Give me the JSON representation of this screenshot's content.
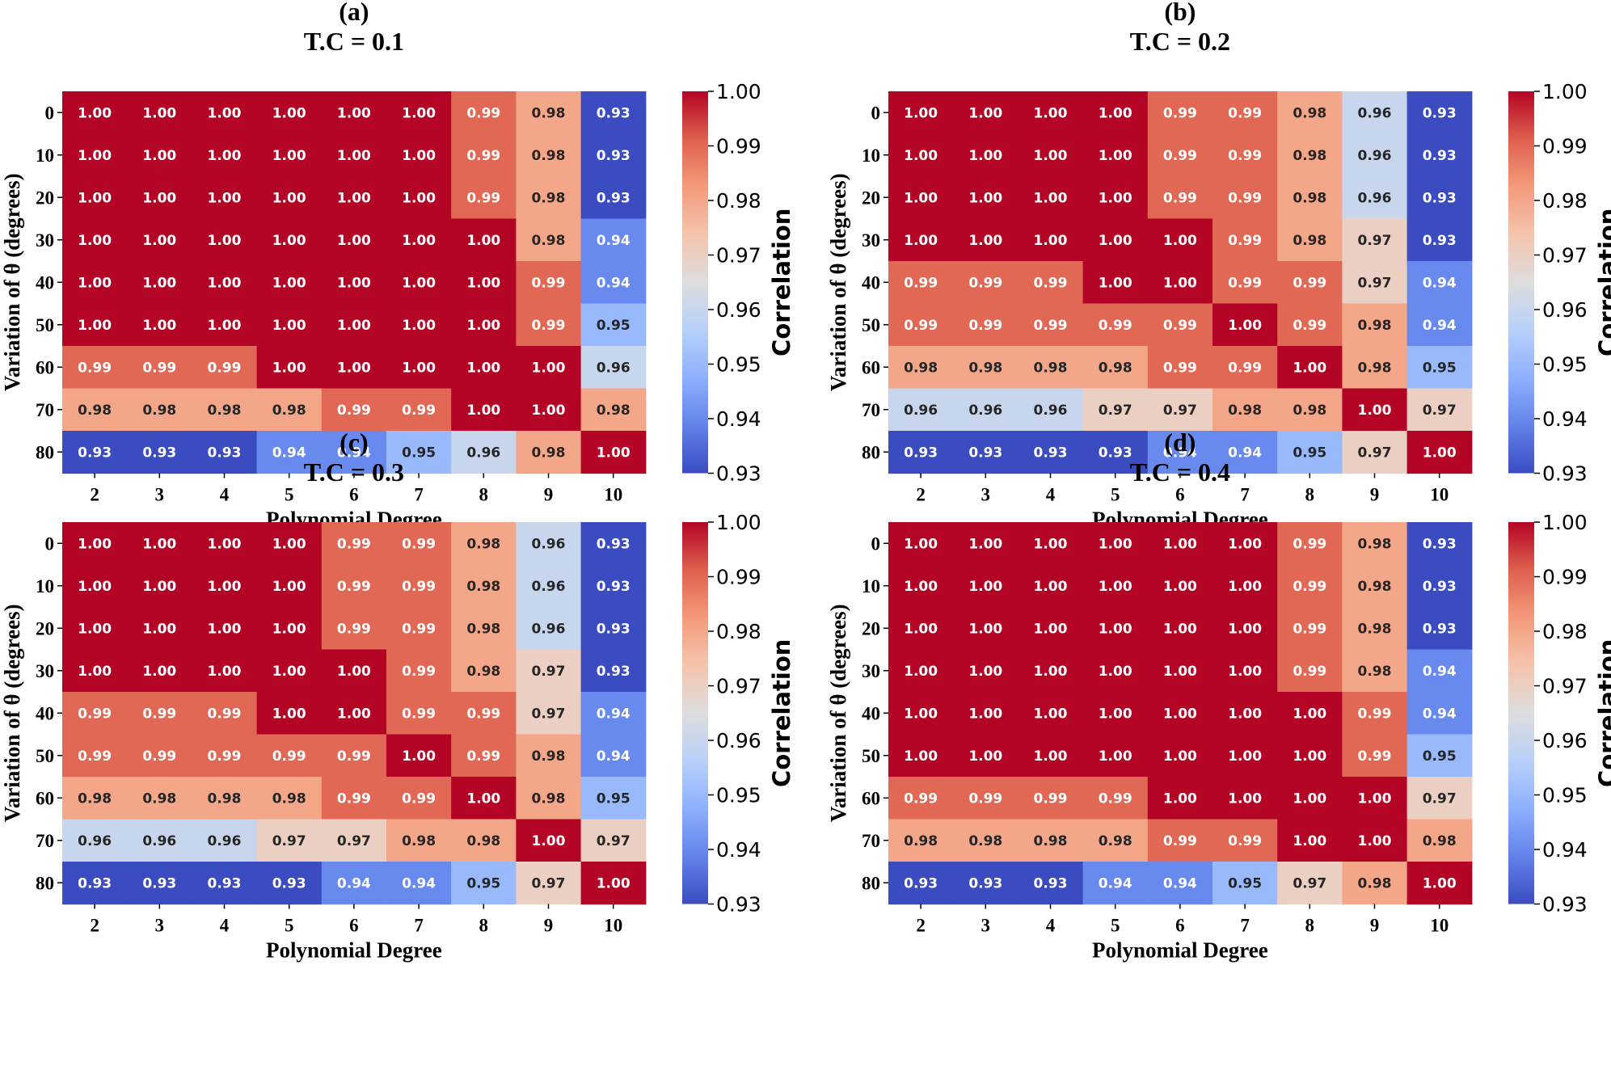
{
  "chart_data": [
    {
      "type": "heatmap",
      "panel_label": "(a)",
      "title": "T.C = 0.1",
      "xlabel": "Polynomial Degree",
      "ylabel": "Variation of  θ (degrees)",
      "x_categories": [
        "2",
        "3",
        "4",
        "5",
        "6",
        "7",
        "8",
        "9",
        "10"
      ],
      "y_categories": [
        "0",
        "10",
        "20",
        "30",
        "40",
        "50",
        "60",
        "70",
        "80"
      ],
      "values": [
        [
          1.0,
          1.0,
          1.0,
          1.0,
          1.0,
          1.0,
          0.99,
          0.98,
          0.93
        ],
        [
          1.0,
          1.0,
          1.0,
          1.0,
          1.0,
          1.0,
          0.99,
          0.98,
          0.93
        ],
        [
          1.0,
          1.0,
          1.0,
          1.0,
          1.0,
          1.0,
          0.99,
          0.98,
          0.93
        ],
        [
          1.0,
          1.0,
          1.0,
          1.0,
          1.0,
          1.0,
          1.0,
          0.98,
          0.94
        ],
        [
          1.0,
          1.0,
          1.0,
          1.0,
          1.0,
          1.0,
          1.0,
          0.99,
          0.94
        ],
        [
          1.0,
          1.0,
          1.0,
          1.0,
          1.0,
          1.0,
          1.0,
          0.99,
          0.95
        ],
        [
          0.99,
          0.99,
          0.99,
          1.0,
          1.0,
          1.0,
          1.0,
          1.0,
          0.96
        ],
        [
          0.98,
          0.98,
          0.98,
          0.98,
          0.99,
          0.99,
          1.0,
          1.0,
          0.98
        ],
        [
          0.93,
          0.93,
          0.93,
          0.94,
          0.94,
          0.95,
          0.96,
          0.98,
          1.0
        ]
      ],
      "colorbar": {
        "label": "Correlation",
        "range": [
          0.93,
          1.0
        ],
        "ticks": [
          "1.00",
          "0.99",
          "0.98",
          "0.97",
          "0.96",
          "0.95",
          "0.94",
          "0.93"
        ],
        "colormap": "coolwarm"
      }
    },
    {
      "type": "heatmap",
      "panel_label": "(b)",
      "title": "T.C = 0.2",
      "xlabel": "Polynomial Degree",
      "ylabel": "Variation of  θ (degrees)",
      "x_categories": [
        "2",
        "3",
        "4",
        "5",
        "6",
        "7",
        "8",
        "9",
        "10"
      ],
      "y_categories": [
        "0",
        "10",
        "20",
        "30",
        "40",
        "50",
        "60",
        "70",
        "80"
      ],
      "values": [
        [
          1.0,
          1.0,
          1.0,
          1.0,
          0.99,
          0.99,
          0.98,
          0.96,
          0.93
        ],
        [
          1.0,
          1.0,
          1.0,
          1.0,
          0.99,
          0.99,
          0.98,
          0.96,
          0.93
        ],
        [
          1.0,
          1.0,
          1.0,
          1.0,
          0.99,
          0.99,
          0.98,
          0.96,
          0.93
        ],
        [
          1.0,
          1.0,
          1.0,
          1.0,
          1.0,
          0.99,
          0.98,
          0.97,
          0.93
        ],
        [
          0.99,
          0.99,
          0.99,
          1.0,
          1.0,
          0.99,
          0.99,
          0.97,
          0.94
        ],
        [
          0.99,
          0.99,
          0.99,
          0.99,
          0.99,
          1.0,
          0.99,
          0.98,
          0.94
        ],
        [
          0.98,
          0.98,
          0.98,
          0.98,
          0.99,
          0.99,
          1.0,
          0.98,
          0.95
        ],
        [
          0.96,
          0.96,
          0.96,
          0.97,
          0.97,
          0.98,
          0.98,
          1.0,
          0.97
        ],
        [
          0.93,
          0.93,
          0.93,
          0.93,
          0.94,
          0.94,
          0.95,
          0.97,
          1.0
        ]
      ],
      "colorbar": {
        "label": "Correlation",
        "range": [
          0.93,
          1.0
        ],
        "ticks": [
          "1.00",
          "0.99",
          "0.98",
          "0.97",
          "0.96",
          "0.95",
          "0.94",
          "0.93"
        ],
        "colormap": "coolwarm"
      }
    },
    {
      "type": "heatmap",
      "panel_label": "(c)",
      "title": "T.C = 0.3",
      "xlabel": "Polynomial Degree",
      "ylabel": "Variation of  θ (degrees)",
      "x_categories": [
        "2",
        "3",
        "4",
        "5",
        "6",
        "7",
        "8",
        "9",
        "10"
      ],
      "y_categories": [
        "0",
        "10",
        "20",
        "30",
        "40",
        "50",
        "60",
        "70",
        "80"
      ],
      "values": [
        [
          1.0,
          1.0,
          1.0,
          1.0,
          0.99,
          0.99,
          0.98,
          0.96,
          0.93
        ],
        [
          1.0,
          1.0,
          1.0,
          1.0,
          0.99,
          0.99,
          0.98,
          0.96,
          0.93
        ],
        [
          1.0,
          1.0,
          1.0,
          1.0,
          0.99,
          0.99,
          0.98,
          0.96,
          0.93
        ],
        [
          1.0,
          1.0,
          1.0,
          1.0,
          1.0,
          0.99,
          0.98,
          0.97,
          0.93
        ],
        [
          0.99,
          0.99,
          0.99,
          1.0,
          1.0,
          0.99,
          0.99,
          0.97,
          0.94
        ],
        [
          0.99,
          0.99,
          0.99,
          0.99,
          0.99,
          1.0,
          0.99,
          0.98,
          0.94
        ],
        [
          0.98,
          0.98,
          0.98,
          0.98,
          0.99,
          0.99,
          1.0,
          0.98,
          0.95
        ],
        [
          0.96,
          0.96,
          0.96,
          0.97,
          0.97,
          0.98,
          0.98,
          1.0,
          0.97
        ],
        [
          0.93,
          0.93,
          0.93,
          0.93,
          0.94,
          0.94,
          0.95,
          0.97,
          1.0
        ]
      ],
      "colorbar": {
        "label": "Correlation",
        "range": [
          0.93,
          1.0
        ],
        "ticks": [
          "1.00",
          "0.99",
          "0.98",
          "0.97",
          "0.96",
          "0.95",
          "0.94",
          "0.93"
        ],
        "colormap": "coolwarm"
      }
    },
    {
      "type": "heatmap",
      "panel_label": "(d)",
      "title": "T.C = 0.4",
      "xlabel": "Polynomial Degree",
      "ylabel": "Variation of  θ (degrees)",
      "x_categories": [
        "2",
        "3",
        "4",
        "5",
        "6",
        "7",
        "8",
        "9",
        "10"
      ],
      "y_categories": [
        "0",
        "10",
        "20",
        "30",
        "40",
        "50",
        "60",
        "70",
        "80"
      ],
      "values": [
        [
          1.0,
          1.0,
          1.0,
          1.0,
          1.0,
          1.0,
          0.99,
          0.98,
          0.93
        ],
        [
          1.0,
          1.0,
          1.0,
          1.0,
          1.0,
          1.0,
          0.99,
          0.98,
          0.93
        ],
        [
          1.0,
          1.0,
          1.0,
          1.0,
          1.0,
          1.0,
          0.99,
          0.98,
          0.93
        ],
        [
          1.0,
          1.0,
          1.0,
          1.0,
          1.0,
          1.0,
          0.99,
          0.98,
          0.94
        ],
        [
          1.0,
          1.0,
          1.0,
          1.0,
          1.0,
          1.0,
          1.0,
          0.99,
          0.94
        ],
        [
          1.0,
          1.0,
          1.0,
          1.0,
          1.0,
          1.0,
          1.0,
          0.99,
          0.95
        ],
        [
          0.99,
          0.99,
          0.99,
          0.99,
          1.0,
          1.0,
          1.0,
          1.0,
          0.97
        ],
        [
          0.98,
          0.98,
          0.98,
          0.98,
          0.99,
          0.99,
          1.0,
          1.0,
          0.98
        ],
        [
          0.93,
          0.93,
          0.93,
          0.94,
          0.94,
          0.95,
          0.97,
          0.98,
          1.0
        ]
      ],
      "colorbar": {
        "label": "Correlation",
        "range": [
          0.93,
          1.0
        ],
        "ticks": [
          "1.00",
          "0.99",
          "0.98",
          "0.97",
          "0.96",
          "0.95",
          "0.94",
          "0.93"
        ],
        "colormap": "coolwarm"
      }
    }
  ]
}
